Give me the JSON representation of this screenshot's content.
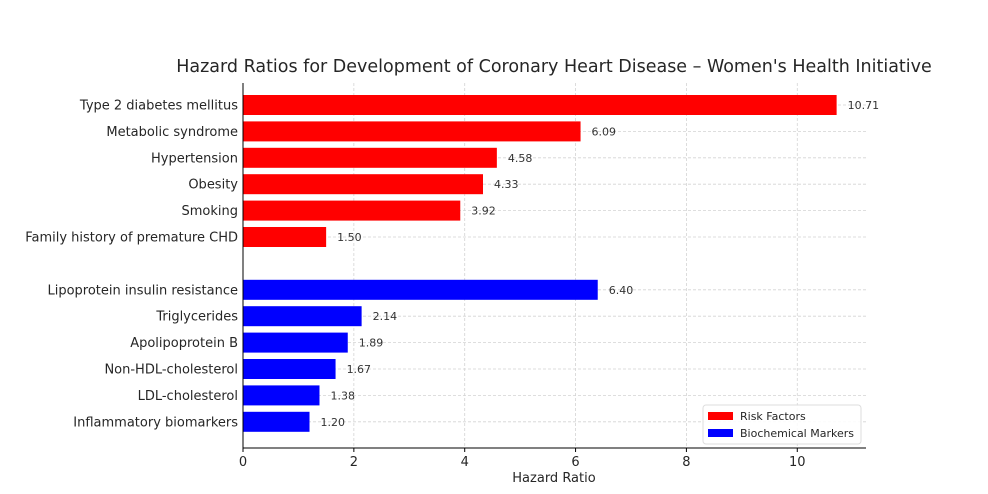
{
  "chart_data": {
    "type": "bar",
    "orientation": "horizontal",
    "title": "Hazard Ratios for Development of Coronary Heart Disease – Women's Health Initiative",
    "xlabel": "Hazard Ratio",
    "ylabel": "",
    "xlim": [
      0,
      11.24
    ],
    "xticks": [
      0,
      2,
      4,
      6,
      8,
      10
    ],
    "grid": true,
    "legend_position": "bottom-right",
    "series": [
      {
        "name": "Risk Factors",
        "color": "#ff0000",
        "categories": [
          "Type 2 diabetes mellitus",
          "Metabolic syndrome",
          "Hypertension",
          "Obesity",
          "Smoking",
          "Family history of premature CHD"
        ],
        "values": [
          10.71,
          6.09,
          4.58,
          4.33,
          3.92,
          1.5
        ],
        "labels": [
          "10.71",
          "6.09",
          "4.58",
          "4.33",
          "3.92",
          "1.50"
        ]
      },
      {
        "name": "Biochemical Markers",
        "color": "#0000ff",
        "categories": [
          "Lipoprotein insulin resistance",
          "Triglycerides",
          "Apolipoprotein B",
          "Non-HDL-cholesterol",
          "LDL-cholesterol",
          "Inflammatory biomarkers"
        ],
        "values": [
          6.4,
          2.14,
          1.89,
          1.67,
          1.38,
          1.2
        ],
        "labels": [
          "6.40",
          "2.14",
          "1.89",
          "1.67",
          "1.38",
          "1.20"
        ]
      }
    ]
  }
}
